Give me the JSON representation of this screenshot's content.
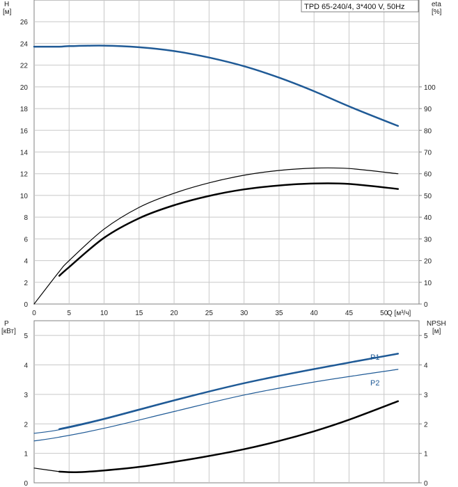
{
  "chart_data": [
    {
      "type": "line",
      "title": "TPD 65-240/4, 3*400 V, 50Hz",
      "xlabel": "Q [м³/ч]",
      "xlim": [
        0,
        55
      ],
      "x_ticks": [
        0,
        5,
        10,
        15,
        20,
        25,
        30,
        35,
        40,
        45,
        50
      ],
      "y_left": {
        "label": "H",
        "unit": "[м]",
        "ylim": [
          0,
          28
        ],
        "ticks": [
          0,
          2,
          4,
          6,
          8,
          10,
          12,
          14,
          16,
          18,
          20,
          22,
          24,
          26
        ]
      },
      "y_right": {
        "label": "eta",
        "unit": "[%]",
        "ylim": [
          0,
          140
        ],
        "ticks": [
          0,
          10,
          20,
          30,
          40,
          50,
          60,
          70,
          80,
          90,
          100
        ]
      },
      "grid": true,
      "series": [
        {
          "axis": "left",
          "color": "#1f5a96",
          "width": 2.5,
          "x": [
            0,
            3.6,
            5,
            10,
            15,
            20,
            25,
            30,
            35,
            40,
            45,
            52
          ],
          "y": [
            23.7,
            23.7,
            23.75,
            23.8,
            23.65,
            23.3,
            22.7,
            21.9,
            20.85,
            19.6,
            18.2,
            16.4
          ]
        },
        {
          "axis": "right",
          "color": "#000000",
          "width": 1.2,
          "x": [
            0,
            3.6,
            5,
            10,
            15,
            20,
            25,
            30,
            35,
            40,
            45,
            52
          ],
          "y": [
            0,
            15,
            20,
            34.5,
            44.5,
            51,
            55.8,
            59.3,
            61.5,
            62.6,
            62.4,
            60
          ]
        },
        {
          "axis": "right",
          "color": "#000000",
          "width": 2.5,
          "x": [
            3.6,
            5,
            10,
            15,
            20,
            25,
            30,
            35,
            40,
            45,
            52
          ],
          "y": [
            13,
            17,
            30.5,
            39.5,
            45.5,
            49.8,
            52.8,
            54.6,
            55.5,
            55.3,
            53
          ]
        }
      ]
    },
    {
      "type": "line",
      "x_ticks": [
        0,
        5,
        10,
        15,
        20,
        25,
        30,
        35,
        40,
        45,
        50
      ],
      "xlim": [
        0,
        55
      ],
      "y_left": {
        "label": "P",
        "unit": "[кВт]",
        "ylim": [
          0,
          5.5
        ],
        "ticks": [
          0,
          1,
          2,
          3,
          4,
          5
        ]
      },
      "y_right": {
        "label": "NPSH",
        "unit": "[м]",
        "ylim": [
          0,
          5.5
        ],
        "ticks": [
          0,
          1,
          2,
          3,
          4,
          5
        ]
      },
      "grid": true,
      "series": [
        {
          "name": "P1",
          "axis": "left",
          "color": "#1f5a96",
          "width": 1.2,
          "x": [
            0,
            3.6,
            10,
            20,
            30,
            40,
            52
          ],
          "y": [
            1.68,
            1.8,
            2.15,
            2.78,
            3.38,
            3.85,
            4.38
          ]
        },
        {
          "name": "P1",
          "axis": "left",
          "color": "#1f5a96",
          "width": 2.5,
          "x": [
            3.6,
            10,
            20,
            30,
            40,
            52
          ],
          "y": [
            1.82,
            2.17,
            2.8,
            3.38,
            3.86,
            4.38
          ]
        },
        {
          "name": "P2",
          "axis": "left",
          "color": "#1f5a96",
          "width": 1.2,
          "x": [
            0,
            3.6,
            10,
            20,
            30,
            40,
            52
          ],
          "y": [
            1.42,
            1.55,
            1.85,
            2.42,
            2.98,
            3.42,
            3.85
          ]
        },
        {
          "axis": "right",
          "color": "#000000",
          "width": 1.2,
          "x": [
            0,
            3.6
          ],
          "y": [
            0.5,
            0.38
          ]
        },
        {
          "axis": "right",
          "color": "#000000",
          "width": 2.5,
          "x": [
            3.6,
            6,
            10,
            15,
            20,
            25,
            30,
            35,
            40,
            45,
            52
          ],
          "y": [
            0.38,
            0.36,
            0.42,
            0.54,
            0.71,
            0.91,
            1.14,
            1.42,
            1.75,
            2.14,
            2.77
          ]
        }
      ]
    }
  ]
}
